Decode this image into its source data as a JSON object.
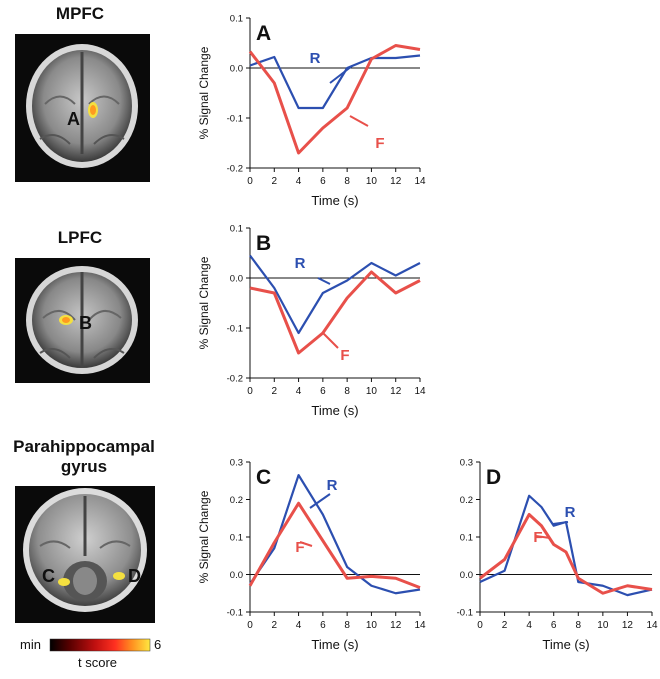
{
  "regions": {
    "mpfc": {
      "title": "MPFC",
      "label": "A"
    },
    "lpfc": {
      "title": "LPFC",
      "label": "B"
    },
    "parahippocampal": {
      "title_line1": "Parahippocampal",
      "title_line2": "gyrus",
      "label_left": "C",
      "label_right": "D"
    }
  },
  "colorbar": {
    "min_label": "min",
    "max_label": "6",
    "caption": "t score",
    "colors": [
      "#000000",
      "#5a0000",
      "#c01010",
      "#ff3020",
      "#ff9020",
      "#ffe840"
    ]
  },
  "colors": {
    "R": "#2c4fb0",
    "F": "#e8504a"
  },
  "chart_data": [
    {
      "id": "A",
      "type": "line",
      "panel_label": "A",
      "xlabel": "Time (s)",
      "ylabel": "% Signal Change",
      "xlim": [
        0,
        14
      ],
      "ylim": [
        -0.2,
        0.1
      ],
      "xticks": [
        "0",
        "2",
        "4",
        "6",
        "8",
        "10",
        "12",
        "14"
      ],
      "yticks": [
        0.1,
        0.0,
        -0.1,
        -0.2
      ],
      "ytick_labels": [
        "0.1",
        "0.0",
        "-0.1",
        "-0.2"
      ],
      "x": [
        0,
        2,
        4,
        6,
        8,
        10,
        12,
        14
      ],
      "series": [
        {
          "name": "R",
          "values": [
            0.005,
            0.022,
            -0.08,
            -0.08,
            0.0,
            0.02,
            0.02,
            0.025
          ]
        },
        {
          "name": "F",
          "values": [
            0.033,
            -0.03,
            -0.17,
            -0.12,
            -0.08,
            0.018,
            0.045,
            0.037
          ]
        }
      ]
    },
    {
      "id": "B",
      "type": "line",
      "panel_label": "B",
      "xlabel": "Time (s)",
      "ylabel": "% Signal Change",
      "xlim": [
        0,
        14
      ],
      "ylim": [
        -0.2,
        0.1
      ],
      "xticks": [
        "0",
        "2",
        "4",
        "6",
        "8",
        "10",
        "12",
        "14"
      ],
      "yticks": [
        0.1,
        0.0,
        -0.1,
        -0.2
      ],
      "ytick_labels": [
        "0.1",
        "0.0",
        "-0.1",
        "-0.2"
      ],
      "x": [
        0,
        2,
        4,
        6,
        8,
        10,
        12,
        14
      ],
      "series": [
        {
          "name": "R",
          "values": [
            0.045,
            -0.02,
            -0.11,
            -0.03,
            -0.005,
            0.03,
            0.005,
            0.03
          ]
        },
        {
          "name": "F",
          "values": [
            -0.02,
            -0.03,
            -0.15,
            -0.11,
            -0.04,
            0.012,
            -0.03,
            -0.005
          ]
        }
      ]
    },
    {
      "id": "C",
      "type": "line",
      "panel_label": "C",
      "xlabel": "Time (s)",
      "ylabel": "% Signal Change",
      "xlim": [
        0,
        14
      ],
      "ylim": [
        -0.1,
        0.3
      ],
      "xticks": [
        "0",
        "2",
        "4",
        "6",
        "8",
        "10",
        "12",
        "14"
      ],
      "yticks": [
        0.3,
        0.2,
        0.1,
        0.0,
        -0.1
      ],
      "ytick_labels": [
        "0.3",
        "0.2",
        "0.1",
        "0.0",
        "-0.1"
      ],
      "x": [
        0,
        2,
        4,
        6,
        8,
        10,
        12,
        14
      ],
      "series": [
        {
          "name": "R",
          "values": [
            -0.025,
            0.07,
            0.265,
            0.16,
            0.02,
            -0.03,
            -0.05,
            -0.04
          ]
        },
        {
          "name": "F",
          "values": [
            -0.03,
            0.085,
            0.19,
            0.09,
            -0.01,
            -0.005,
            -0.01,
            -0.035
          ]
        }
      ]
    },
    {
      "id": "D",
      "type": "line",
      "panel_label": "D",
      "xlabel": "Time (s)",
      "ylabel": "",
      "xlim": [
        0,
        14
      ],
      "ylim": [
        -0.1,
        0.3
      ],
      "xticks": [
        "0",
        "2",
        "4",
        "6",
        "8",
        "10",
        "12",
        "14"
      ],
      "yticks": [
        0.3,
        0.2,
        0.1,
        0.0,
        -0.1
      ],
      "ytick_labels": [
        "0.3",
        "0.2",
        "0.1",
        "0.0",
        "-0.1"
      ],
      "x": [
        0,
        2,
        4,
        5,
        6,
        7,
        8,
        10,
        12,
        14
      ],
      "series": [
        {
          "name": "R",
          "values": [
            -0.02,
            0.01,
            0.21,
            0.18,
            0.13,
            0.14,
            -0.02,
            -0.03,
            -0.055,
            -0.04
          ]
        },
        {
          "name": "F",
          "values": [
            -0.01,
            0.04,
            0.16,
            0.13,
            0.08,
            0.06,
            -0.01,
            -0.05,
            -0.03,
            -0.04
          ]
        }
      ]
    }
  ]
}
